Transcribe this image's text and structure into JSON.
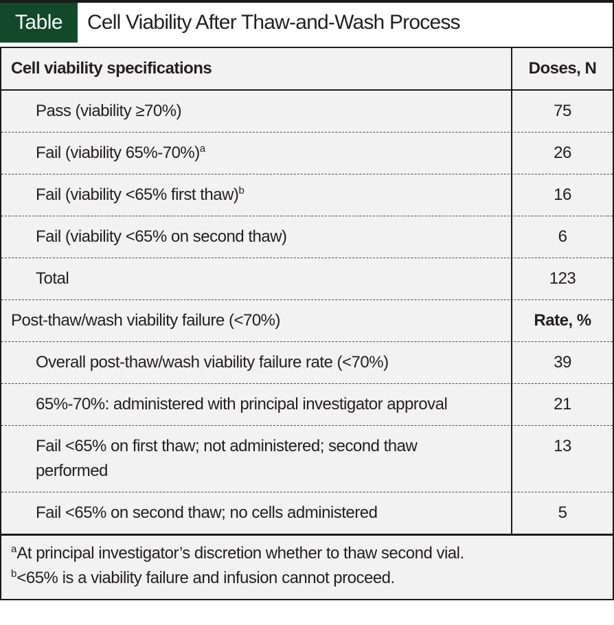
{
  "header": {
    "badge_label": "Table",
    "title": "Cell Viability After Thaw-and-Wash Process"
  },
  "colors": {
    "badge_green": "#11492a",
    "row_gray": "#f2f2f2",
    "rule_black": "#1a1a1a",
    "title_band_white": "#ffffff"
  },
  "table": {
    "section1": {
      "header": {
        "label": "Cell viability specifications",
        "value": "Doses, N"
      },
      "rows": [
        {
          "label": "Pass (viability ≥70%)",
          "sup": "",
          "value": "75"
        },
        {
          "label": "Fail (viability 65%-70%)",
          "sup": "a",
          "value": "26"
        },
        {
          "label": "Fail (viability <65% first thaw)",
          "sup": "b",
          "value": "16"
        },
        {
          "label": "Fail (viability <65% on second thaw)",
          "sup": "",
          "value": "6"
        },
        {
          "label": "Total",
          "sup": "",
          "value": "123"
        }
      ]
    },
    "section2": {
      "header": {
        "label": "Post-thaw/wash viability failure (<70%)",
        "value": "Rate, %"
      },
      "rows": [
        {
          "label": "Overall post-thaw/wash viability failure rate (<70%)",
          "sup": "",
          "value": "39"
        },
        {
          "label": "65%-70%: administered with principal investigator approval",
          "sup": "",
          "value": "21"
        },
        {
          "label": "Fail <65% on first thaw; not administered; second thaw performed",
          "sup": "",
          "value": "13"
        },
        {
          "label": "Fail <65% on second thaw; no cells administered",
          "sup": "",
          "value": "5"
        }
      ]
    },
    "footnotes": [
      {
        "sup": "a",
        "text": "At principal investigator’s discretion whether to thaw second vial."
      },
      {
        "sup": "b",
        "text": "<65% is a viability failure and infusion cannot proceed."
      }
    ]
  }
}
